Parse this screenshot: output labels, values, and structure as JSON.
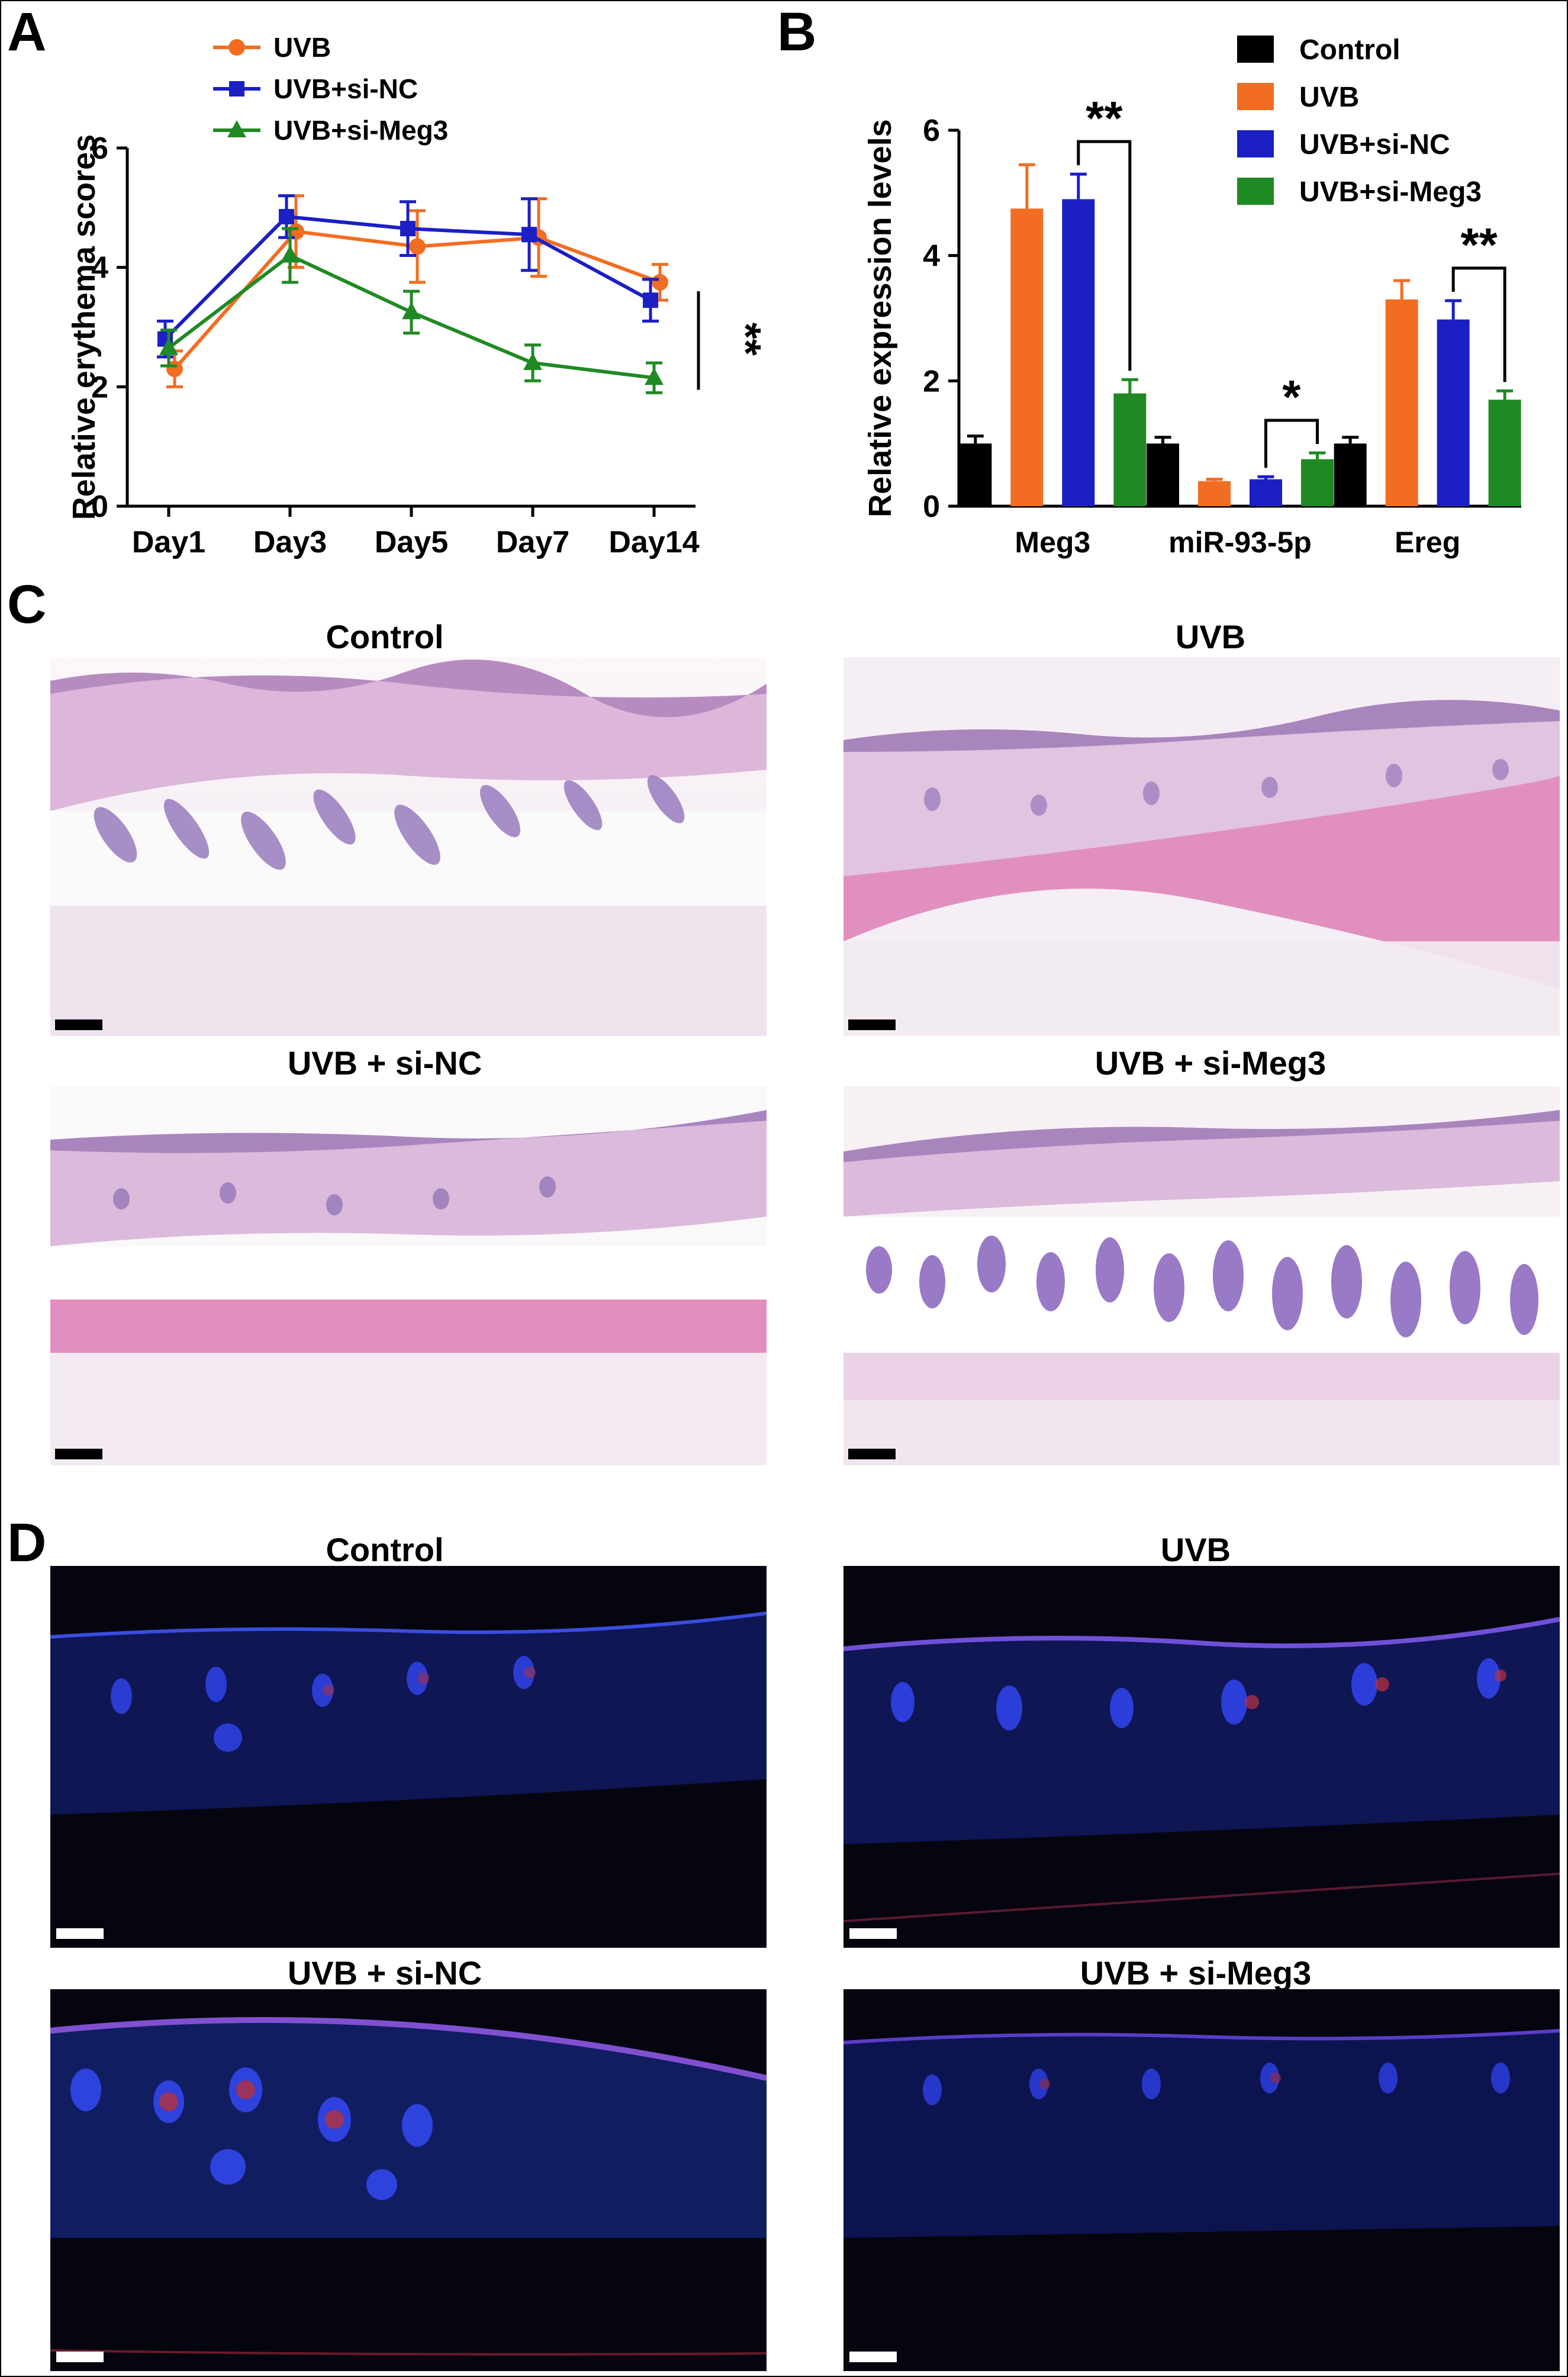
{
  "panels": {
    "a": "A",
    "b": "B",
    "c": "C",
    "d": "D"
  },
  "chart_data": [
    {
      "type": "line",
      "panel": "A",
      "categories": [
        "Day1",
        "Day3",
        "Day5",
        "Day7",
        "Day14"
      ],
      "ylabel": "Relative erythema scores",
      "xlabel": "",
      "ylim": [
        0,
        6
      ],
      "yticks": [
        0,
        2,
        4,
        6
      ],
      "legend_placement": "top-left",
      "series": [
        {
          "name": "UVB",
          "color": "#f26d21",
          "marker": "circle",
          "values": [
            2.3,
            4.6,
            4.35,
            4.5,
            3.75
          ],
          "errors": [
            0.3,
            0.6,
            0.6,
            0.65,
            0.3
          ]
        },
        {
          "name": "UVB+si-NC",
          "color": "#1b1fc4",
          "marker": "square",
          "values": [
            2.8,
            4.85,
            4.65,
            4.55,
            3.45
          ],
          "errors": [
            0.3,
            0.35,
            0.45,
            0.6,
            0.35
          ]
        },
        {
          "name": "UVB+si-Meg3",
          "color": "#1f8a23",
          "marker": "triangle",
          "values": [
            2.65,
            4.2,
            3.25,
            2.4,
            2.15
          ],
          "errors": [
            0.3,
            0.45,
            0.35,
            0.3,
            0.25
          ]
        }
      ],
      "annotations": [
        {
          "text": "**",
          "between": "UVB+si-NC vs UVB+si-Meg3",
          "at": "Day14"
        }
      ]
    },
    {
      "type": "bar",
      "panel": "B",
      "categories": [
        "Meg3",
        "miR-93-5p",
        "Ereg"
      ],
      "ylabel": "Relative expression levels",
      "xlabel": "",
      "ylim": [
        0,
        6
      ],
      "yticks": [
        0,
        2,
        4,
        6
      ],
      "legend_placement": "top-right",
      "series": [
        {
          "name": "Control",
          "color": "#000000",
          "values": [
            1.0,
            1.0,
            1.0
          ],
          "errors": [
            0.12,
            0.1,
            0.1
          ]
        },
        {
          "name": "UVB",
          "color": "#f26d21",
          "values": [
            4.75,
            0.4,
            3.3
          ],
          "errors": [
            0.7,
            0.03,
            0.3
          ]
        },
        {
          "name": "UVB+si-NC",
          "color": "#1b1fc4",
          "values": [
            4.9,
            0.43,
            2.98
          ],
          "errors": [
            0.4,
            0.04,
            0.3
          ]
        },
        {
          "name": "UVB+si-Meg3",
          "color": "#1f8a23",
          "values": [
            1.8,
            0.75,
            1.7
          ],
          "errors": [
            0.22,
            0.1,
            0.14
          ]
        }
      ],
      "annotations": [
        {
          "category": "Meg3",
          "text": "**"
        },
        {
          "category": "miR-93-5p",
          "text": "*"
        },
        {
          "category": "Ereg",
          "text": "**"
        }
      ]
    }
  ],
  "panel_c": {
    "titles": [
      "Control",
      "UVB",
      "UVB + si-NC",
      "UVB + si-Meg3"
    ],
    "colors": {
      "tissue": "#e3c2e0",
      "follicle": "#8c6cb5",
      "muscle": "#e48fc0",
      "fat": "#ffffff"
    }
  },
  "panel_d": {
    "titles": [
      "Control",
      "UVB",
      "UVB + si-NC",
      "UVB + si-Meg3"
    ],
    "colors": {
      "background": "#05050f",
      "nuclei": "#2a3bd6",
      "signal": "#c0302f"
    }
  }
}
